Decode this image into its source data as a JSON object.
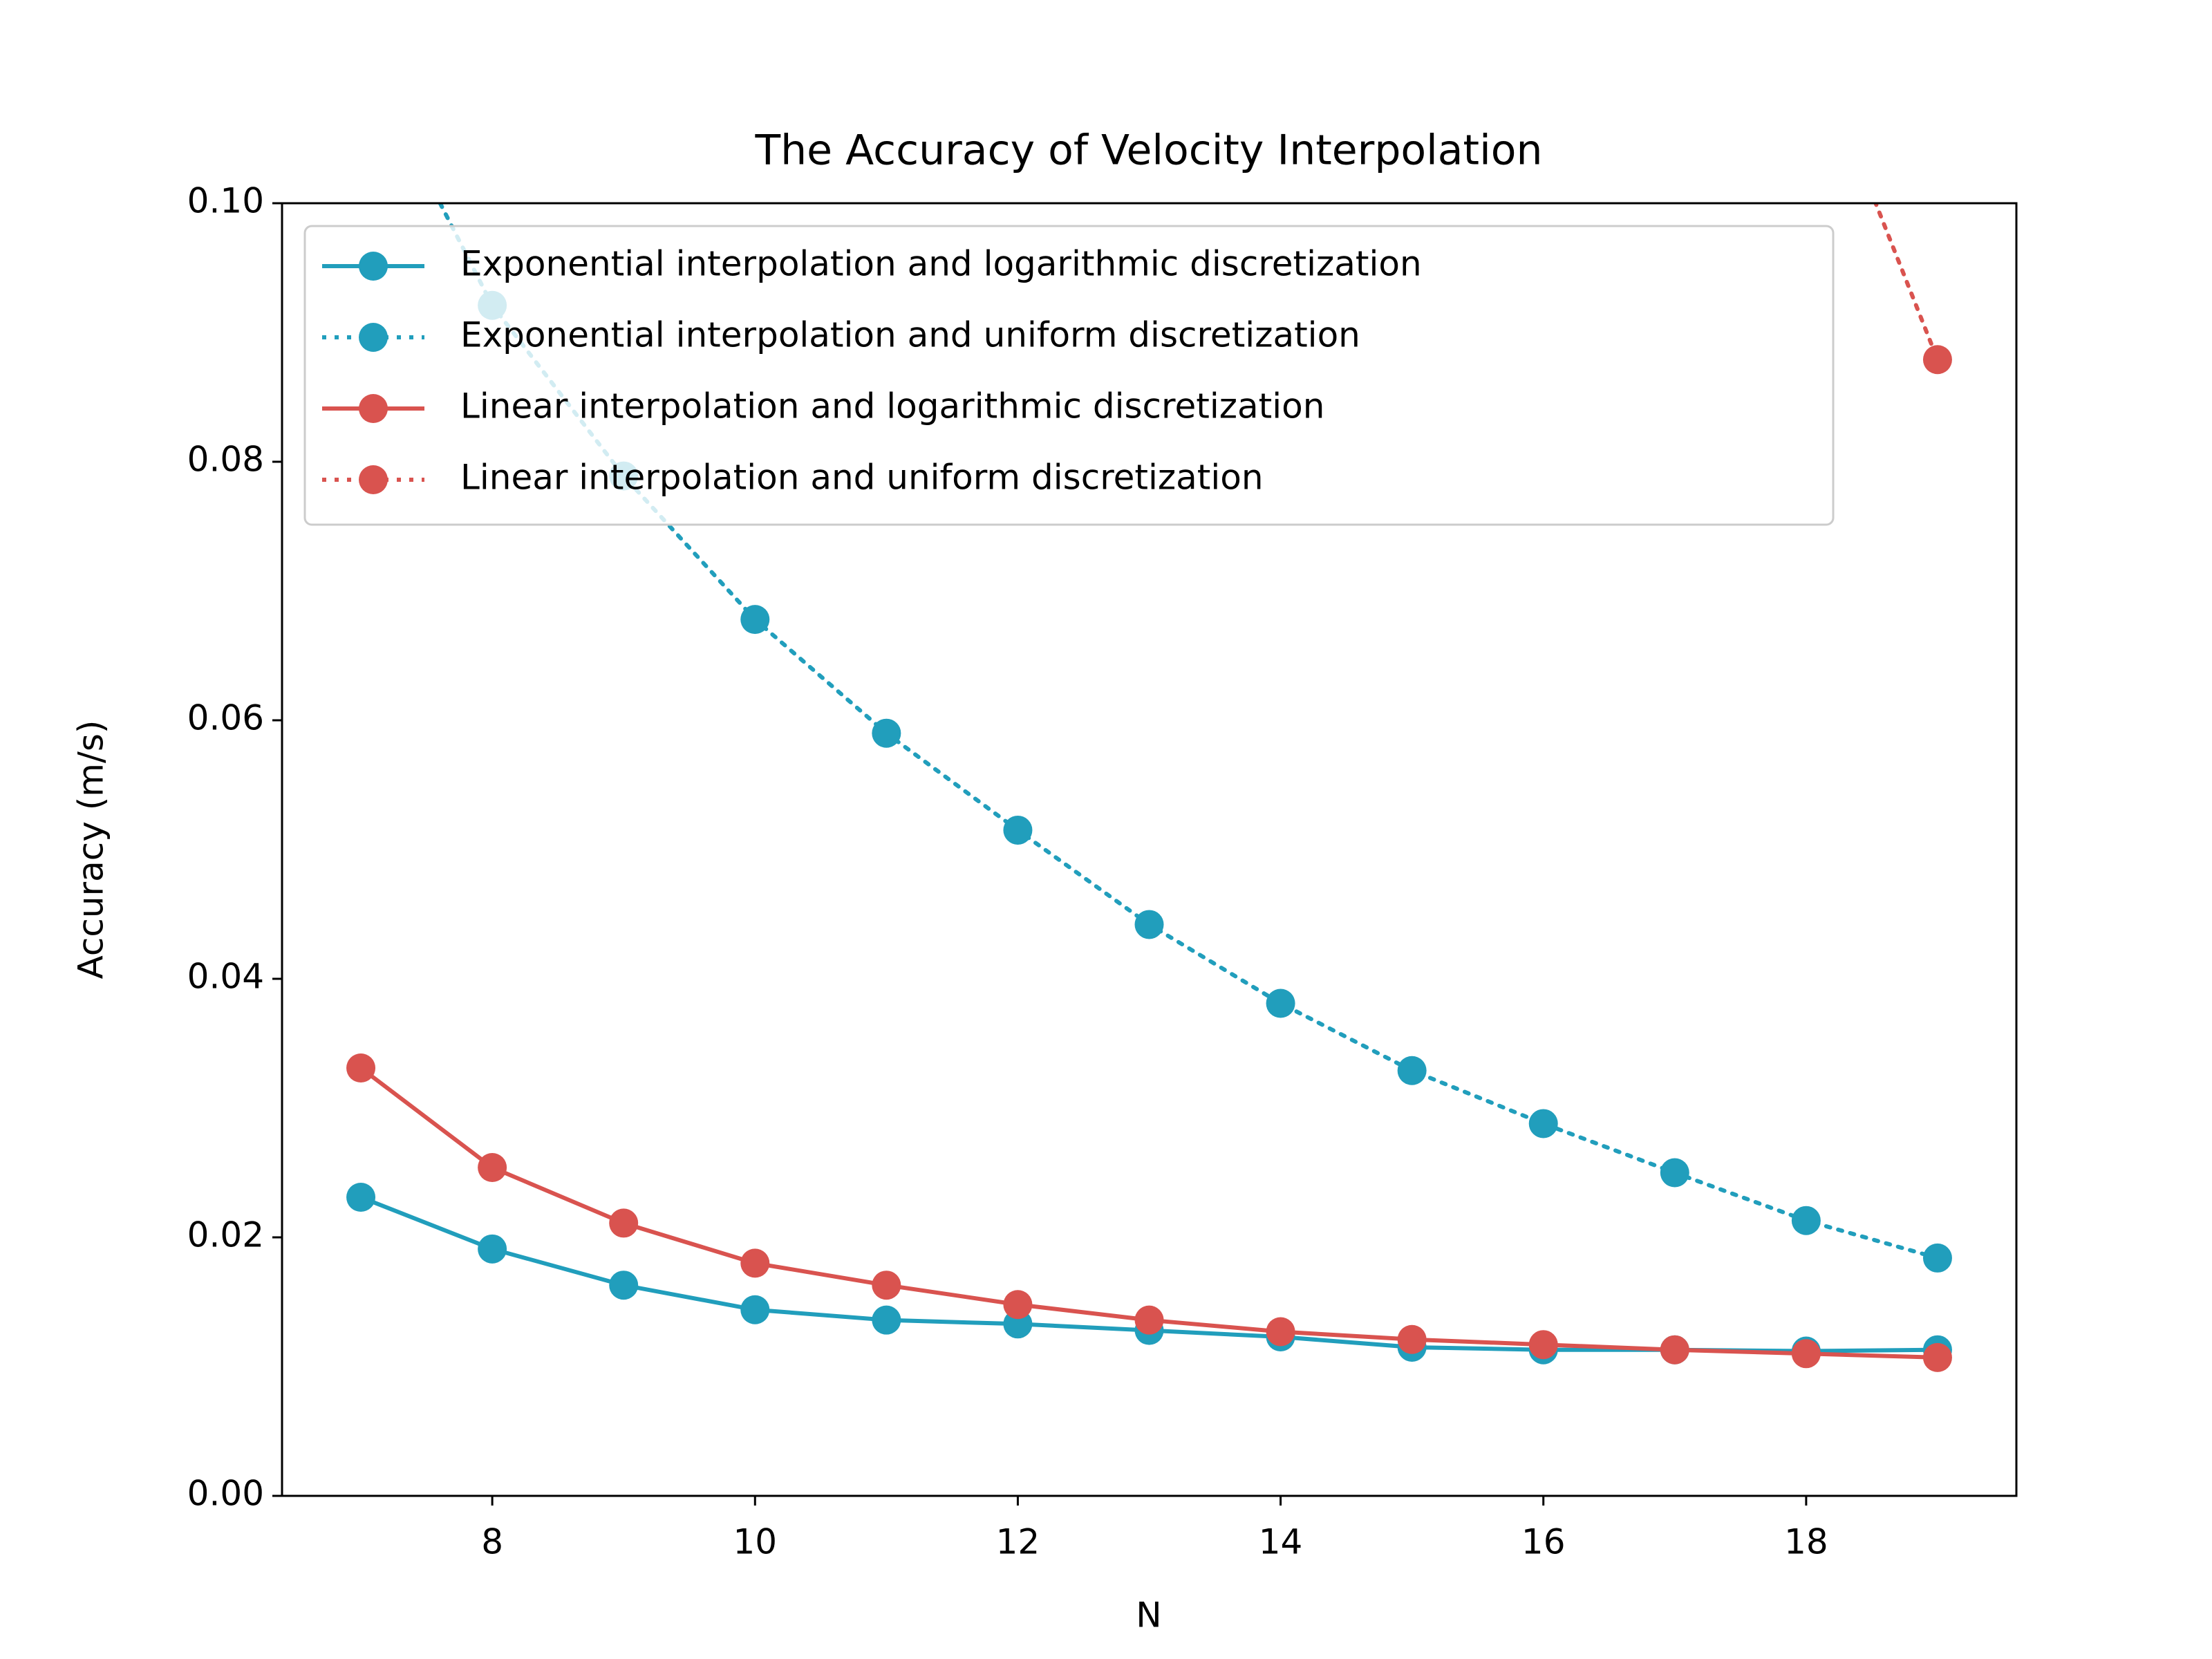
{
  "chart_data": {
    "type": "line",
    "title": "The Accuracy of Velocity Interpolation",
    "x_label": "N",
    "y_label": "Accuracy (m/s)",
    "x": [
      7,
      8,
      9,
      10,
      11,
      12,
      13,
      14,
      15,
      16,
      17,
      18,
      19
    ],
    "series": [
      {
        "name": "Exponential interpolation and logarithmic discretization",
        "color": "#219ebc",
        "linestyle": "solid",
        "values": [
          0.0231,
          0.0191,
          0.0163,
          0.0144,
          0.0136,
          0.0133,
          0.0128,
          0.0123,
          0.0115,
          0.0113,
          0.0113,
          0.0112,
          0.0113
        ]
      },
      {
        "name": "Exponential interpolation and uniform discretization",
        "color": "#219ebc",
        "linestyle": "dotted",
        "values": [
          0.112,
          0.0921,
          0.0789,
          0.0678,
          0.059,
          0.0515,
          0.0442,
          0.0381,
          0.0329,
          0.0288,
          0.025,
          0.0213,
          0.0184
        ]
      },
      {
        "name": "Linear interpolation and logarithmic discretization",
        "color": "#d9534f",
        "linestyle": "solid",
        "values": [
          0.0331,
          0.0254,
          0.0211,
          0.018,
          0.0163,
          0.0148,
          0.0136,
          0.0127,
          0.0121,
          0.0117,
          0.0113,
          0.011,
          0.0107
        ]
      },
      {
        "name": "Linear interpolation and uniform discretization",
        "color": "#d9534f",
        "linestyle": "dotted",
        "values": [
          null,
          null,
          null,
          null,
          null,
          null,
          null,
          null,
          null,
          null,
          null,
          0.1136,
          0.0879
        ]
      }
    ],
    "xlim": [
      6.4,
      19.6
    ],
    "xticks": [
      8,
      10,
      12,
      14,
      16,
      18
    ],
    "ylim": [
      0,
      0.1
    ],
    "yticks": [
      {
        "value": 0,
        "label": "0.00"
      },
      {
        "value": 0.02,
        "label": "0.02"
      },
      {
        "value": 0.04,
        "label": "0.04"
      },
      {
        "value": 0.06,
        "label": "0.06"
      },
      {
        "value": 0.08,
        "label": "0.08"
      },
      {
        "value": 0.1,
        "label": "0.10"
      }
    ],
    "grid": false,
    "legend_loc": "upper left"
  }
}
